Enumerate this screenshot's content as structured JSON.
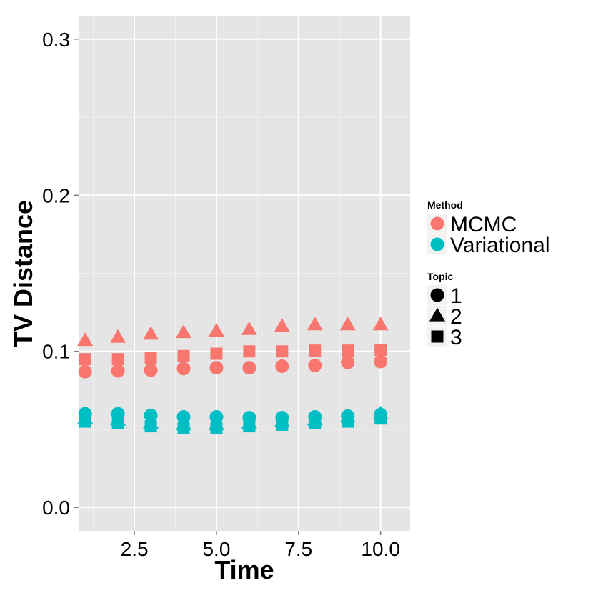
{
  "chart_data": {
    "type": "scatter",
    "xlabel": "Time",
    "ylabel": "TV Distance",
    "xlim": [
      0.8,
      10.9
    ],
    "ylim": [
      -0.015,
      0.315
    ],
    "x_ticks": [
      2.5,
      5.0,
      7.5,
      10.0
    ],
    "x_tick_labels": [
      "2.5",
      "5.0",
      "7.5",
      "10.0"
    ],
    "y_ticks": [
      0.0,
      0.1,
      0.2,
      0.3
    ],
    "y_tick_labels": [
      "0.0",
      "0.1",
      "0.2",
      "0.3"
    ],
    "grid": true,
    "panel_background": "#e5e5e5",
    "grid_color": "#ffffff",
    "x": [
      1,
      2,
      3,
      4,
      5,
      6,
      7,
      8,
      9,
      10
    ],
    "legend": {
      "position": "right",
      "color_title": "Method",
      "shape_title": "Topic"
    },
    "methods": [
      {
        "name": "MCMC",
        "color": "#f8766d"
      },
      {
        "name": "Variational",
        "color": "#00bfc4"
      }
    ],
    "topics": [
      {
        "name": "1",
        "shape": "circle"
      },
      {
        "name": "2",
        "shape": "triangle"
      },
      {
        "name": "3",
        "shape": "square"
      }
    ],
    "series": [
      {
        "method": "MCMC",
        "topic": "1",
        "values": [
          0.087,
          0.0875,
          0.088,
          0.089,
          0.0895,
          0.0895,
          0.0905,
          0.091,
          0.093,
          0.0935
        ]
      },
      {
        "method": "MCMC",
        "topic": "2",
        "values": [
          0.107,
          0.109,
          0.111,
          0.112,
          0.113,
          0.114,
          0.116,
          0.117,
          0.117,
          0.117
        ]
      },
      {
        "method": "MCMC",
        "topic": "3",
        "values": [
          0.095,
          0.095,
          0.0955,
          0.097,
          0.0985,
          0.1,
          0.1,
          0.1005,
          0.1005,
          0.101
        ]
      },
      {
        "method": "Variational",
        "topic": "1",
        "values": [
          0.06,
          0.06,
          0.059,
          0.058,
          0.058,
          0.0575,
          0.0575,
          0.058,
          0.0585,
          0.0595
        ]
      },
      {
        "method": "Variational",
        "topic": "2",
        "values": [
          0.057,
          0.056,
          0.054,
          0.053,
          0.053,
          0.054,
          0.055,
          0.056,
          0.058,
          0.06
        ]
      },
      {
        "method": "Variational",
        "topic": "3",
        "values": [
          0.055,
          0.054,
          0.052,
          0.051,
          0.051,
          0.052,
          0.053,
          0.054,
          0.055,
          0.057
        ]
      }
    ]
  }
}
